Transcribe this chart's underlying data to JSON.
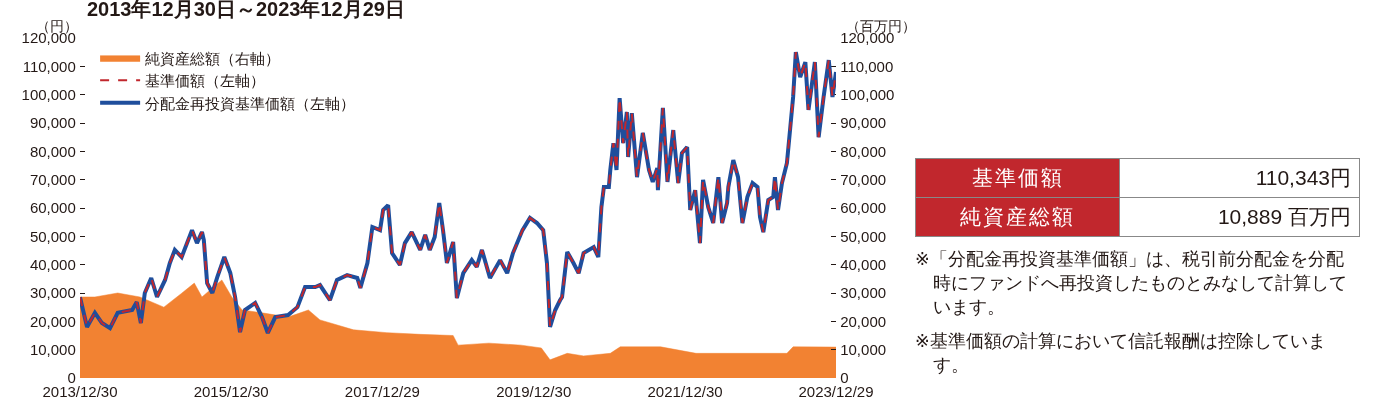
{
  "chart_data": [
    {
      "type": "line",
      "title": "2013年12月30日～2023年12月29日",
      "ylabel": "（円）",
      "y2label": "（百万円）",
      "xlim": [
        "2013-12-30",
        "2023-12-29"
      ],
      "xticks": [
        {
          "value": "2013-12-30",
          "label": "2013/12/30"
        },
        {
          "value": "2015-12-30",
          "label": "2015/12/30"
        },
        {
          "value": "2017-12-29",
          "label": "2017/12/29"
        },
        {
          "value": "2019-12-30",
          "label": "2019/12/30"
        },
        {
          "value": "2021-12-30",
          "label": "2021/12/30"
        },
        {
          "value": "2023-12-29",
          "label": "2023/12/29"
        }
      ],
      "ylim": [
        0,
        120000
      ],
      "yticks": [
        0,
        {
          "value": 10000,
          "label": "10,000"
        },
        {
          "value": 20000,
          "label": "20,000"
        },
        {
          "value": 30000,
          "label": "30,000"
        },
        {
          "value": 40000,
          "label": "40,000"
        },
        {
          "value": 50000,
          "label": "50,000"
        },
        {
          "value": 60000,
          "label": "60,000"
        },
        {
          "value": 70000,
          "label": "70,000"
        },
        {
          "value": 80000,
          "label": "80,000"
        },
        {
          "value": 90000,
          "label": "90,000"
        },
        {
          "value": 100000,
          "label": "100,000"
        },
        {
          "value": 110000,
          "label": "110,000"
        },
        {
          "value": 120000,
          "label": "120,000"
        }
      ],
      "y2lim": [
        0,
        120000
      ],
      "y2ticks": [
        0,
        {
          "value": 10000,
          "label": "10,000"
        },
        {
          "value": 20000,
          "label": "20,000"
        },
        {
          "value": 30000,
          "label": "30,000"
        },
        {
          "value": 40000,
          "label": "40,000"
        },
        {
          "value": 50000,
          "label": "50,000"
        },
        {
          "value": 60000,
          "label": "60,000"
        },
        {
          "value": 70000,
          "label": "70,000"
        },
        {
          "value": 80000,
          "label": "80,000"
        },
        {
          "value": 90000,
          "label": "90,000"
        },
        {
          "value": 100000,
          "label": "100,000"
        },
        {
          "value": 110000,
          "label": "110,000"
        },
        {
          "value": 120000,
          "label": "120,000"
        }
      ],
      "grid": false,
      "legend": "top left",
      "series": [
        {
          "name": "純資産総額（右軸）",
          "type": "area",
          "axis": "y2",
          "color": "#f28232",
          "x": [
            "2013-12-30",
            "2014-03-12",
            "2014-06-30",
            "2014-10-15",
            "2015-02-08",
            "2015-05-05",
            "2015-07-05",
            "2015-08-11",
            "2015-11-15",
            "2016-01-02",
            "2016-02-21",
            "2016-05-27",
            "2016-09-30",
            "2017-01-06",
            "2017-03-03",
            "2017-08-12",
            "2018-01-20",
            "2018-06-30",
            "2018-12-06",
            "2018-12-30",
            "2019-05-27",
            "2019-10-30",
            "2020-02-05",
            "2020-03-18",
            "2020-06-09",
            "2020-08-27",
            "2021-01-03",
            "2021-02-20",
            "2021-09-03",
            "2022-02-21",
            "2022-07-21",
            "2023-05-06",
            "2023-06-05",
            "2023-12-29"
          ],
          "values": [
            28600,
            28600,
            30000,
            28600,
            25000,
            29900,
            33500,
            28600,
            34600,
            28600,
            24000,
            23000,
            21500,
            24000,
            20500,
            17000,
            16000,
            15400,
            15000,
            11600,
            12300,
            11600,
            10600,
            6400,
            8700,
            7800,
            8700,
            11000,
            11000,
            8700,
            8700,
            8700,
            11000,
            10900
          ]
        },
        {
          "name": "基準価額（左軸）",
          "type": "line",
          "line_style": "dashed",
          "color": "#c1272d",
          "x": [
            "2013-12-30",
            "2014-02-02",
            "2014-03-12",
            "2014-04-15",
            "2014-05-24",
            "2014-06-30",
            "2014-09-08",
            "2014-09-30",
            "2014-10-20",
            "2014-11-08",
            "2014-12-09",
            "2015-01-06",
            "2015-02-14",
            "2015-03-09",
            "2015-04-02",
            "2015-05-05",
            "2015-06-24",
            "2015-07-18",
            "2015-08-11",
            "2015-08-20",
            "2015-09-05",
            "2015-09-30",
            "2015-10-24",
            "2015-11-27",
            "2015-12-26",
            "2016-01-18",
            "2016-02-11",
            "2016-03-06",
            "2016-04-24",
            "2016-05-27",
            "2016-06-24",
            "2016-07-30",
            "2016-09-30",
            "2016-11-14",
            "2016-12-21",
            "2017-02-08",
            "2017-03-03",
            "2017-04-20",
            "2017-05-24",
            "2017-07-12",
            "2017-08-30",
            "2017-09-14",
            "2017-10-18",
            "2017-11-11",
            "2017-12-18",
            "2018-01-02",
            "2018-01-26",
            "2018-02-14",
            "2018-03-24",
            "2018-04-17",
            "2018-05-20",
            "2018-06-30",
            "2018-07-24",
            "2018-08-15",
            "2018-09-08",
            "2018-09-30",
            "2018-10-18",
            "2018-11-06",
            "2018-12-06",
            "2018-12-24",
            "2019-01-24",
            "2019-03-06",
            "2019-03-30",
            "2019-04-24",
            "2019-06-02",
            "2019-07-21",
            "2019-08-24",
            "2019-09-21",
            "2019-11-06",
            "2019-12-12",
            "2020-01-15",
            "2020-02-14",
            "2020-03-03",
            "2020-03-18",
            "2020-04-12",
            "2020-05-06",
            "2020-05-15",
            "2020-06-09",
            "2020-07-09",
            "2020-08-03",
            "2020-08-27",
            "2020-10-15",
            "2020-11-06",
            "2020-11-21",
            "2020-12-03",
            "2020-12-27",
            "2021-01-03",
            "2021-01-18",
            "2021-02-02",
            "2021-02-17",
            "2021-03-06",
            "2021-03-24",
            "2021-03-30",
            "2021-04-17",
            "2021-05-12",
            "2021-06-09",
            "2021-07-09",
            "2021-07-27",
            "2021-08-18",
            "2021-08-21",
            "2021-09-14",
            "2021-10-06",
            "2021-11-03",
            "2021-11-27",
            "2021-12-15",
            "2022-01-09",
            "2022-01-24",
            "2022-02-17",
            "2022-03-12",
            "2022-03-27",
            "2022-04-21",
            "2022-05-15",
            "2022-06-09",
            "2022-06-27",
            "2022-07-21",
            "2022-07-27",
            "2022-08-20",
            "2022-09-12",
            "2022-10-03",
            "2022-10-27",
            "2022-11-21",
            "2022-12-15",
            "2022-12-27",
            "2023-01-12",
            "2023-02-05",
            "2023-03-01",
            "2023-03-09",
            "2023-03-24",
            "2023-04-12",
            "2023-05-06",
            "2023-05-21",
            "2023-06-05",
            "2023-06-18",
            "2023-07-09",
            "2023-08-03",
            "2023-08-18",
            "2023-09-18",
            "2023-10-06",
            "2023-10-30",
            "2023-11-24",
            "2023-12-12",
            "2023-12-29"
          ],
          "values": [
            28500,
            18000,
            23000,
            19400,
            17600,
            23000,
            24000,
            26800,
            19400,
            30000,
            35300,
            28600,
            34600,
            40600,
            45200,
            42700,
            52200,
            47600,
            51500,
            48700,
            33500,
            30000,
            35600,
            42700,
            37000,
            28600,
            16200,
            24000,
            26500,
            21500,
            15900,
            21500,
            22200,
            25000,
            32100,
            32100,
            32800,
            27500,
            34600,
            36300,
            35300,
            31800,
            40600,
            53300,
            52200,
            59300,
            61000,
            44100,
            39900,
            47600,
            51500,
            45200,
            50500,
            45200,
            49800,
            61800,
            52200,
            40600,
            48000,
            28200,
            37000,
            41600,
            39200,
            45200,
            35300,
            41600,
            37000,
            44100,
            52200,
            56500,
            54700,
            52200,
            40600,
            18000,
            24000,
            27500,
            28600,
            44500,
            40600,
            37000,
            44100,
            46200,
            42700,
            60300,
            67400,
            67400,
            73400,
            82900,
            73400,
            98800,
            82900,
            93900,
            78000,
            93500,
            70900,
            86500,
            73400,
            69200,
            74100,
            66300,
            95300,
            69200,
            87500,
            68800,
            79400,
            81500,
            59300,
            66300,
            47600,
            69900,
            60300,
            54700,
            70900,
            54700,
            61800,
            67400,
            76900,
            70900,
            54700,
            63900,
            68800,
            67400,
            56800,
            51500,
            62800,
            63900,
            70900,
            59300,
            68800,
            75900,
            87500,
            99200,
            115000,
            106200,
            111500,
            94600,
            111500,
            85000,
            99200,
            112200,
            99200,
            108000
          ]
        },
        {
          "name": "分配金再投資基準価額（左軸）",
          "type": "line",
          "line_style": "solid",
          "color": "#1f4e9c",
          "x": [
            "2013-12-30",
            "2014-02-02",
            "2014-03-12",
            "2014-04-15",
            "2014-05-24",
            "2014-06-30",
            "2014-09-08",
            "2014-09-30",
            "2014-10-20",
            "2014-11-08",
            "2014-12-09",
            "2015-01-06",
            "2015-02-14",
            "2015-03-09",
            "2015-04-02",
            "2015-05-05",
            "2015-06-24",
            "2015-07-18",
            "2015-08-11",
            "2015-08-20",
            "2015-09-05",
            "2015-09-30",
            "2015-10-24",
            "2015-11-27",
            "2015-12-26",
            "2016-01-18",
            "2016-02-11",
            "2016-03-06",
            "2016-04-24",
            "2016-05-27",
            "2016-06-24",
            "2016-07-30",
            "2016-09-30",
            "2016-11-14",
            "2016-12-21",
            "2017-02-08",
            "2017-03-03",
            "2017-04-20",
            "2017-05-24",
            "2017-07-12",
            "2017-08-30",
            "2017-09-14",
            "2017-10-18",
            "2017-11-11",
            "2017-12-18",
            "2018-01-02",
            "2018-01-26",
            "2018-02-14",
            "2018-03-24",
            "2018-04-17",
            "2018-05-20",
            "2018-06-30",
            "2018-07-24",
            "2018-08-15",
            "2018-09-08",
            "2018-09-30",
            "2018-10-18",
            "2018-11-06",
            "2018-12-06",
            "2018-12-24",
            "2019-01-24",
            "2019-03-06",
            "2019-03-30",
            "2019-04-24",
            "2019-06-02",
            "2019-07-21",
            "2019-08-24",
            "2019-09-21",
            "2019-11-06",
            "2019-12-12",
            "2020-01-15",
            "2020-02-14",
            "2020-03-03",
            "2020-03-18",
            "2020-04-12",
            "2020-05-06",
            "2020-05-15",
            "2020-06-09",
            "2020-07-09",
            "2020-08-03",
            "2020-08-27",
            "2020-10-15",
            "2020-11-06",
            "2020-11-21",
            "2020-12-03",
            "2020-12-27",
            "2021-01-03",
            "2021-01-18",
            "2021-02-02",
            "2021-02-17",
            "2021-03-06",
            "2021-03-24",
            "2021-03-30",
            "2021-04-17",
            "2021-05-12",
            "2021-06-09",
            "2021-07-09",
            "2021-07-27",
            "2021-08-18",
            "2021-08-21",
            "2021-09-14",
            "2021-10-06",
            "2021-11-03",
            "2021-11-27",
            "2021-12-15",
            "2022-01-09",
            "2022-01-24",
            "2022-02-17",
            "2022-03-12",
            "2022-03-27",
            "2022-04-21",
            "2022-05-15",
            "2022-06-09",
            "2022-06-27",
            "2022-07-21",
            "2022-07-27",
            "2022-08-20",
            "2022-09-12",
            "2022-10-03",
            "2022-10-27",
            "2022-11-21",
            "2022-12-15",
            "2022-12-27",
            "2023-01-12",
            "2023-02-05",
            "2023-03-01",
            "2023-03-09",
            "2023-03-24",
            "2023-04-12",
            "2023-05-06",
            "2023-05-21",
            "2023-06-05",
            "2023-06-18",
            "2023-07-09",
            "2023-08-03",
            "2023-08-18",
            "2023-09-18",
            "2023-10-06",
            "2023-10-30",
            "2023-11-24",
            "2023-12-12",
            "2023-12-29"
          ],
          "values": [
            28500,
            18000,
            23000,
            19400,
            17600,
            23000,
            24000,
            26800,
            19400,
            30000,
            35300,
            28600,
            34600,
            40600,
            45200,
            42700,
            52200,
            47600,
            51500,
            48700,
            33500,
            30000,
            35600,
            42700,
            37000,
            28600,
            16200,
            24000,
            26500,
            21500,
            15900,
            21500,
            22200,
            25000,
            32100,
            32100,
            32800,
            27500,
            34600,
            36300,
            35300,
            31800,
            40600,
            53300,
            52200,
            59300,
            61000,
            44100,
            39900,
            47600,
            51500,
            45200,
            50500,
            45200,
            49800,
            61800,
            52200,
            40600,
            48000,
            28200,
            37000,
            41600,
            39200,
            45200,
            35300,
            41600,
            37000,
            44100,
            52200,
            56500,
            54700,
            52200,
            40600,
            18000,
            24000,
            27500,
            28600,
            44500,
            40600,
            37000,
            44100,
            46200,
            42700,
            60300,
            67400,
            67400,
            73400,
            82900,
            73400,
            98800,
            82900,
            93900,
            78000,
            93500,
            70900,
            86500,
            73400,
            69200,
            74100,
            66300,
            95300,
            69200,
            87500,
            68800,
            79400,
            81500,
            59300,
            66300,
            47600,
            69900,
            60300,
            54700,
            70900,
            54700,
            61800,
            67400,
            76900,
            70900,
            54700,
            63900,
            68800,
            67400,
            56800,
            51500,
            62800,
            63900,
            70900,
            59300,
            68800,
            75900,
            87500,
            99200,
            115000,
            106200,
            111500,
            94600,
            111500,
            85000,
            99200,
            112200,
            99200,
            108000
          ]
        }
      ]
    },
    {
      "type": "other",
      "categories": [
        "基準価額",
        "純資産総額"
      ],
      "value_labels": [
        "110,343円",
        "10,889 百万円"
      ],
      "color": "#c1272d",
      "annotations": [
        "※「分配金再投資基準価額」は、税引前分配金を分配時にファンドへ再投資したものとみなして計算しています。",
        "※基準価額の計算において信託報酬は控除しています。"
      ]
    }
  ]
}
